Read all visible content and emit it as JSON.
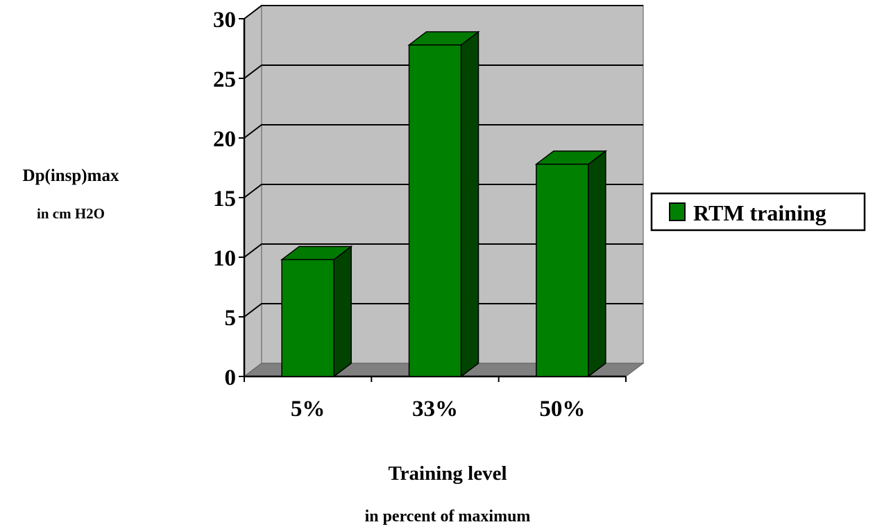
{
  "chart_data": {
    "type": "bar",
    "categories": [
      "5%",
      "33%",
      "50%"
    ],
    "series": [
      {
        "name": "RTM training",
        "values": [
          9.8,
          27.8,
          17.8
        ],
        "color": "#008000"
      }
    ],
    "ylim": [
      0,
      30
    ],
    "yticks": [
      "0",
      "5",
      "10",
      "15",
      "20",
      "25",
      "30"
    ],
    "ylabel": "Dp(insp)max",
    "ylabel_sub": "in cm H2O",
    "xlabel": "Training level",
    "xlabel_sub": "in percent of maximum",
    "grid": true,
    "style": "3d",
    "legend_position": "right",
    "colors": {
      "bar_front": "#008000",
      "bar_side": "#004400",
      "bar_top": "#007A00",
      "plot_wall": "#C0C0C0",
      "plot_floor": "#808080"
    }
  }
}
